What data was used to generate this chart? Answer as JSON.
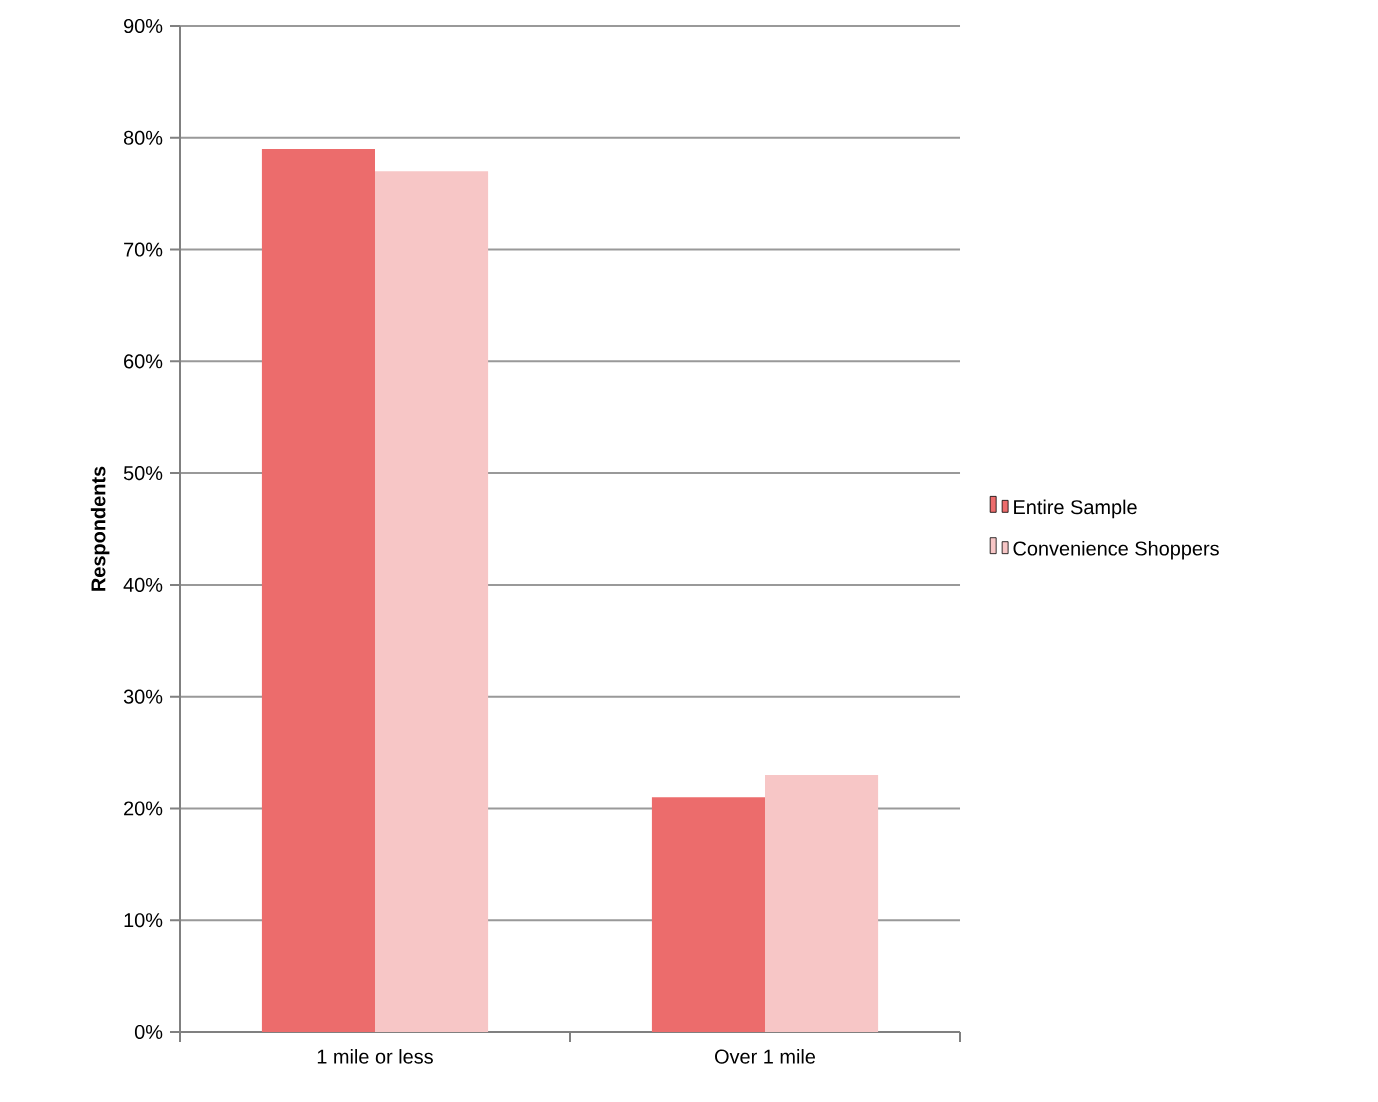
{
  "chart_data": {
    "type": "bar",
    "ylabel": "**Respondents**",
    "categories": [
      "1 mile or less",
      "Over 1 mile"
    ],
    "series": [
      {
        "name": "Entire Sample",
        "color": "#ec6c6c",
        "values": [
          79,
          21
        ]
      },
      {
        "name": "Convenience Shoppers",
        "color": "#f7c6c6",
        "values": [
          77,
          23
        ]
      }
    ],
    "ylim": [
      0,
      90
    ],
    "yticks": [
      {
        "value": 0,
        "label": "0%"
      },
      {
        "value": 10,
        "label": "10%"
      },
      {
        "value": 20,
        "label": "20%"
      },
      {
        "value": 30,
        "label": "30%"
      },
      {
        "value": 40,
        "label": "40%"
      },
      {
        "value": 50,
        "label": "50%"
      },
      {
        "value": 60,
        "label": "60%"
      },
      {
        "value": 70,
        "label": "70%"
      },
      {
        "value": 80,
        "label": "80%"
      },
      {
        "value": 90,
        "label": "90%"
      }
    ],
    "grid": "y",
    "legend": "right"
  }
}
